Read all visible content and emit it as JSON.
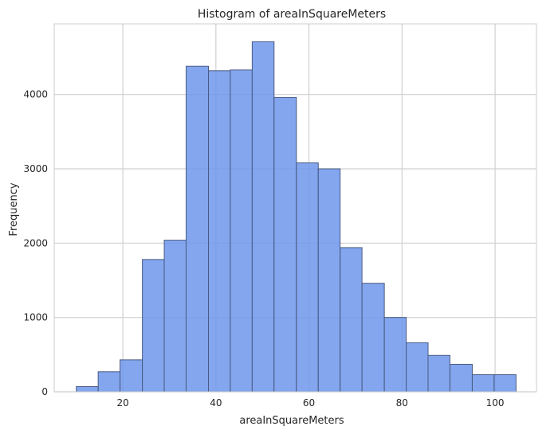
{
  "chart_data": {
    "type": "histogram",
    "title": "Histogram of areaInSquareMeters",
    "xlabel": "areaInSquareMeters",
    "ylabel": "Frequency",
    "xlim": [
      5.25,
      108.9
    ],
    "ylim": [
      0,
      4950
    ],
    "xticks": [
      20,
      40,
      60,
      80,
      100
    ],
    "yticks": [
      0,
      1000,
      2000,
      3000,
      4000
    ],
    "grid": true,
    "bar_color": "#6d97ec",
    "bar_edge_color": "#4a5a80",
    "bins": [
      {
        "x0": 10.0,
        "x1": 14.7,
        "count": 70
      },
      {
        "x0": 14.7,
        "x1": 19.4,
        "count": 270
      },
      {
        "x0": 19.4,
        "x1": 24.2,
        "count": 430
      },
      {
        "x0": 24.2,
        "x1": 28.9,
        "count": 1780
      },
      {
        "x0": 28.9,
        "x1": 33.6,
        "count": 2040
      },
      {
        "x0": 33.6,
        "x1": 38.4,
        "count": 4380
      },
      {
        "x0": 38.4,
        "x1": 43.1,
        "count": 4320
      },
      {
        "x0": 43.1,
        "x1": 47.8,
        "count": 4330
      },
      {
        "x0": 47.8,
        "x1": 52.5,
        "count": 4710
      },
      {
        "x0": 52.5,
        "x1": 57.3,
        "count": 3960
      },
      {
        "x0": 57.3,
        "x1": 62.0,
        "count": 3080
      },
      {
        "x0": 62.0,
        "x1": 66.7,
        "count": 3000
      },
      {
        "x0": 66.7,
        "x1": 71.4,
        "count": 1940
      },
      {
        "x0": 71.4,
        "x1": 76.2,
        "count": 1460
      },
      {
        "x0": 76.2,
        "x1": 80.9,
        "count": 1000
      },
      {
        "x0": 80.9,
        "x1": 85.6,
        "count": 660
      },
      {
        "x0": 85.6,
        "x1": 90.3,
        "count": 490
      },
      {
        "x0": 90.3,
        "x1": 95.1,
        "count": 370
      },
      {
        "x0": 95.1,
        "x1": 99.8,
        "count": 230
      },
      {
        "x0": 99.8,
        "x1": 104.5,
        "count": 230
      }
    ]
  }
}
